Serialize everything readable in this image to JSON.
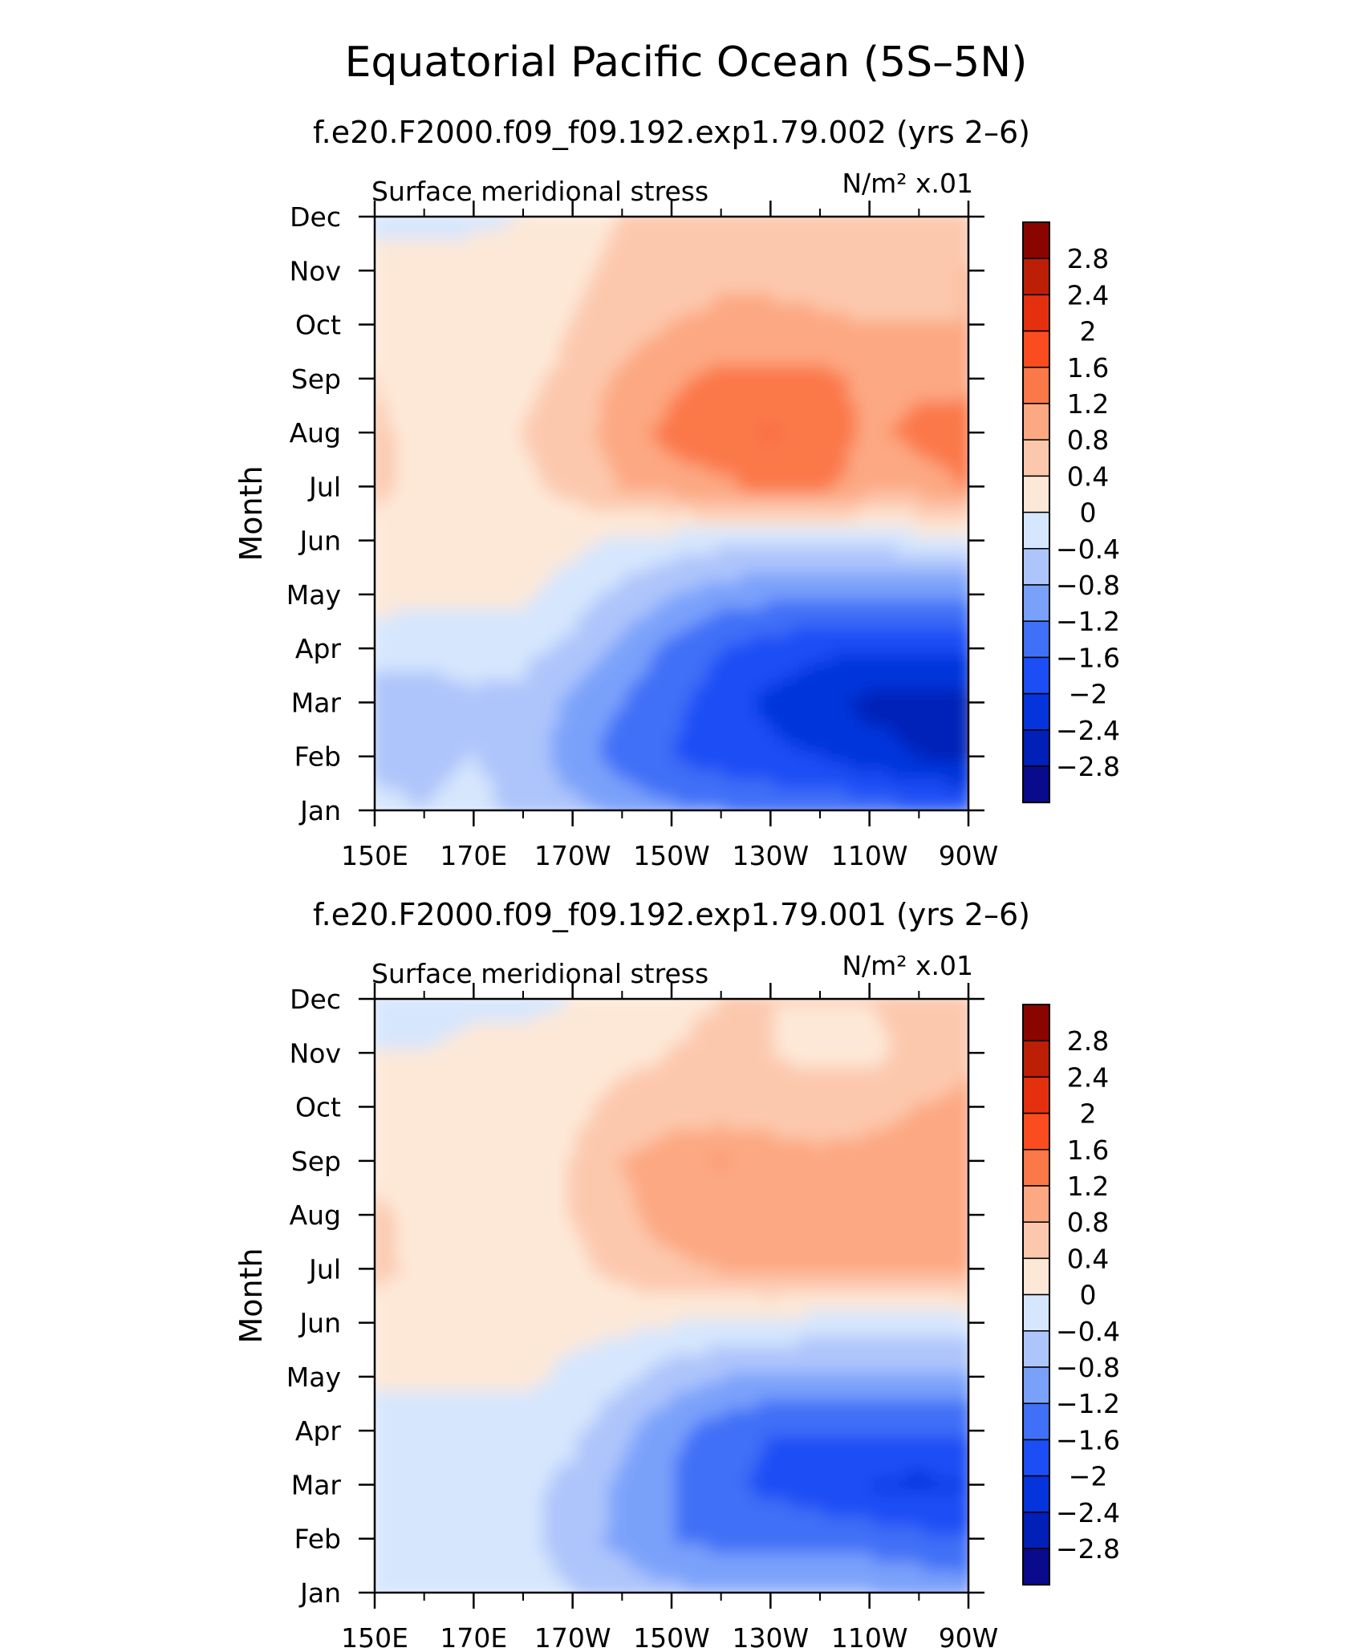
{
  "page_title": "Equatorial Pacific Ocean (5S–5N)",
  "chart_data": [
    {
      "type": "heatmap",
      "title": "f.e20.F2000.f09_f09.192.exp1.79.002 (yrs 2–6)",
      "variable_label": "Surface meridional stress",
      "units_label": "N/m² x.01",
      "xlabel": "",
      "ylabel": "Month",
      "xticks": [
        "150E",
        "170E",
        "170W",
        "150W",
        "130W",
        "110W",
        "90W"
      ],
      "yticks": [
        "Jan",
        "Feb",
        "Mar",
        "Apr",
        "May",
        "Jun",
        "Jul",
        "Aug",
        "Sep",
        "Oct",
        "Nov",
        "Dec"
      ],
      "x_range": [
        "150E",
        "90W"
      ],
      "colorbar_labels": [
        "2.8",
        "2.4",
        "2",
        "1.6",
        "1.2",
        "0.8",
        "0.4",
        "0",
        "−0.4",
        "−0.8",
        "−1.2",
        "−1.6",
        "−2",
        "−2.4",
        "−2.8"
      ],
      "levels": [
        -2.8,
        -2.4,
        -2,
        -1.6,
        -1.2,
        -0.8,
        -0.4,
        0,
        0.4,
        0.8,
        1.2,
        1.6,
        2,
        2.4,
        2.8
      ],
      "columns": [
        "150E",
        "160E",
        "170E",
        "180",
        "170W",
        "160W",
        "150W",
        "140W",
        "130W",
        "120W",
        "110W",
        "100W",
        "90W"
      ],
      "values": [
        [
          -0.2,
          -0.4,
          -0.2,
          -0.6,
          -0.7,
          -0.9,
          -1.1,
          -1.2,
          -1.3,
          -1.3,
          -1.4,
          -1.5,
          -1.6
        ],
        [
          -0.6,
          -0.6,
          -0.4,
          -0.6,
          -1.0,
          -1.4,
          -1.6,
          -1.8,
          -1.9,
          -2.0,
          -2.2,
          -2.4,
          -2.5
        ],
        [
          -0.6,
          -0.6,
          -0.5,
          -0.5,
          -0.9,
          -1.2,
          -1.5,
          -1.8,
          -2.1,
          -2.3,
          -2.5,
          -2.6,
          -2.6
        ],
        [
          -0.3,
          -0.3,
          -0.2,
          -0.3,
          -0.5,
          -0.9,
          -1.3,
          -1.6,
          -1.8,
          -1.9,
          -2.0,
          -2.0,
          -2.0
        ],
        [
          0.2,
          0.1,
          0.1,
          0.1,
          -0.2,
          -0.5,
          -0.8,
          -1.0,
          -1.1,
          -1.2,
          -1.2,
          -1.2,
          -1.2
        ],
        [
          0.2,
          0.2,
          0.2,
          0.2,
          0.1,
          -0.1,
          -0.2,
          -0.3,
          -0.3,
          -0.3,
          -0.3,
          -0.2,
          -0.1
        ],
        [
          0.5,
          0.2,
          0.2,
          0.3,
          0.5,
          0.8,
          1.0,
          1.1,
          1.3,
          1.3,
          1.0,
          1.0,
          1.2
        ],
        [
          0.5,
          0.2,
          0.2,
          0.4,
          0.6,
          1.0,
          1.3,
          1.5,
          1.6,
          1.5,
          1.1,
          1.3,
          1.4
        ],
        [
          0.4,
          0.2,
          0.2,
          0.3,
          0.5,
          0.9,
          1.1,
          1.3,
          1.3,
          1.3,
          1.1,
          1.1,
          1.1
        ],
        [
          0.1,
          0.2,
          0.2,
          0.2,
          0.4,
          0.6,
          0.8,
          0.9,
          0.9,
          0.9,
          0.8,
          0.8,
          0.8
        ],
        [
          0.1,
          0.1,
          0.2,
          0.2,
          0.3,
          0.5,
          0.6,
          0.7,
          0.7,
          0.6,
          0.6,
          0.7,
          0.8
        ],
        [
          -0.1,
          -0.1,
          -0.1,
          0.0,
          0.2,
          0.4,
          0.5,
          0.5,
          0.5,
          0.4,
          0.5,
          0.6,
          0.7
        ]
      ]
    },
    {
      "type": "heatmap",
      "title": "f.e20.F2000.f09_f09.192.exp1.79.001 (yrs 2–6)",
      "variable_label": "Surface meridional stress",
      "units_label": "N/m² x.01",
      "xlabel": "",
      "ylabel": "Month",
      "xticks": [
        "150E",
        "170E",
        "170W",
        "150W",
        "130W",
        "110W",
        "90W"
      ],
      "yticks": [
        "Jan",
        "Feb",
        "Mar",
        "Apr",
        "May",
        "Jun",
        "Jul",
        "Aug",
        "Sep",
        "Oct",
        "Nov",
        "Dec"
      ],
      "x_range": [
        "150E",
        "90W"
      ],
      "colorbar_labels": [
        "2.8",
        "2.4",
        "2",
        "1.6",
        "1.2",
        "0.8",
        "0.4",
        "0",
        "−0.4",
        "−0.8",
        "−1.2",
        "−1.6",
        "−2",
        "−2.4",
        "−2.8"
      ],
      "levels": [
        -2.8,
        -2.4,
        -2,
        -1.6,
        -1.2,
        -0.8,
        -0.4,
        0,
        0.4,
        0.8,
        1.2,
        1.6,
        2,
        2.4,
        2.8
      ],
      "columns": [
        "150E",
        "160E",
        "170E",
        "180",
        "170W",
        "160W",
        "150W",
        "140W",
        "130W",
        "120W",
        "110W",
        "100W",
        "90W"
      ],
      "values": [
        [
          -0.3,
          -0.2,
          -0.2,
          -0.2,
          -0.4,
          -0.6,
          -0.7,
          -0.8,
          -0.8,
          -0.8,
          -0.8,
          -0.9,
          -1.0
        ],
        [
          -0.3,
          -0.3,
          -0.3,
          -0.3,
          -0.6,
          -0.9,
          -1.2,
          -1.3,
          -1.3,
          -1.4,
          -1.4,
          -1.5,
          -1.6
        ],
        [
          -0.3,
          -0.3,
          -0.3,
          -0.3,
          -0.5,
          -0.9,
          -1.2,
          -1.5,
          -1.7,
          -1.8,
          -2.0,
          -2.1,
          -2.0
        ],
        [
          -0.2,
          -0.2,
          -0.2,
          -0.2,
          -0.3,
          -0.7,
          -1.1,
          -1.4,
          -1.6,
          -1.6,
          -1.6,
          -1.6,
          -1.6
        ],
        [
          0.1,
          0.1,
          0.1,
          0.1,
          -0.1,
          -0.3,
          -0.6,
          -0.8,
          -0.9,
          -0.9,
          -0.9,
          -0.9,
          -0.9
        ],
        [
          0.2,
          0.2,
          0.2,
          0.2,
          0.1,
          0.1,
          0.0,
          -0.1,
          -0.1,
          -0.2,
          -0.2,
          -0.2,
          -0.2
        ],
        [
          0.5,
          0.3,
          0.3,
          0.3,
          0.3,
          0.5,
          0.7,
          0.8,
          0.9,
          0.9,
          0.9,
          0.9,
          1.0
        ],
        [
          0.5,
          0.2,
          0.3,
          0.3,
          0.4,
          0.7,
          1.0,
          1.1,
          1.1,
          1.1,
          1.1,
          1.1,
          1.1
        ],
        [
          0.2,
          0.2,
          0.2,
          0.3,
          0.4,
          0.8,
          1.0,
          1.2,
          1.0,
          0.9,
          0.9,
          0.9,
          1.0
        ],
        [
          0.1,
          0.1,
          0.2,
          0.2,
          0.3,
          0.5,
          0.6,
          0.6,
          0.6,
          0.6,
          0.7,
          0.8,
          0.9
        ],
        [
          0.0,
          0.0,
          0.1,
          0.1,
          0.2,
          0.3,
          0.4,
          0.5,
          0.4,
          0.3,
          0.3,
          0.5,
          0.7
        ],
        [
          -0.1,
          -0.1,
          -0.1,
          -0.1,
          0.0,
          0.2,
          0.3,
          0.4,
          0.4,
          0.4,
          0.4,
          0.5,
          0.6
        ]
      ]
    }
  ],
  "colors": {
    "palette": [
      "#0a0a8c",
      "#0020b8",
      "#0534dc",
      "#1d4ef5",
      "#3f70f7",
      "#7aa1fa",
      "#aec5fb",
      "#d6e6fd",
      "#fde8d7",
      "#fcc8ad",
      "#fca882",
      "#fb7848",
      "#fb4c20",
      "#e53010",
      "#bd1e06",
      "#8b0500"
    ],
    "axis": "#000000"
  }
}
